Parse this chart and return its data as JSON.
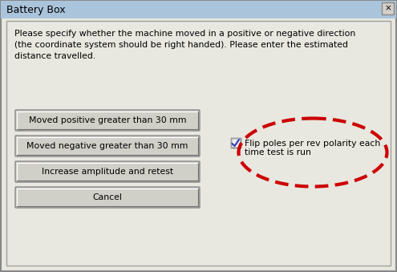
{
  "title": "Battery Box",
  "close_symbol": "×",
  "description_line1": "Please specify whether the machine moved in a positive or negative direction",
  "description_line2": "(the coordinate system should be right handed). Please enter the estimated",
  "description_line3": "distance travelled.",
  "buttons": [
    "Moved positive greater than 30 mm",
    "Moved negative greater than 30 mm",
    "Increase amplitude and retest",
    "Cancel"
  ],
  "checkbox_label_line1": "Flip poles per rev polarity each",
  "checkbox_label_line2": "time test is run",
  "outer_bg": "#c8c8c8",
  "dialog_bg": "#e8e8e0",
  "title_bar_color": "#aac4dc",
  "button_bg": "#d0d0c8",
  "button_edge": "#888888",
  "title_color": "#000000",
  "text_color": "#000000",
  "ellipse_color": "#cc0000",
  "ellipse_lw": 3.0,
  "check_color": "#3344bb",
  "content_bg": "#e4e4dc"
}
